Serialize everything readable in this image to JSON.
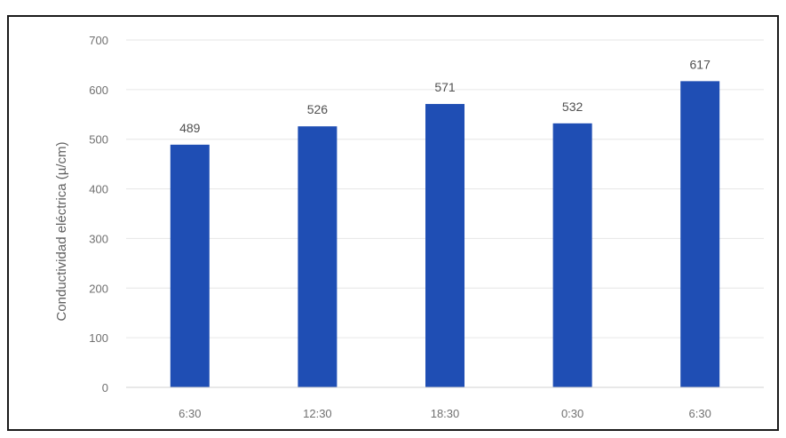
{
  "chart_data": {
    "type": "bar",
    "categories": [
      "6:30",
      "12:30",
      "18:30",
      "0:30",
      "6:30"
    ],
    "values": [
      489,
      526,
      571,
      532,
      617
    ],
    "data_labels": [
      "489",
      "526",
      "571",
      "532",
      "617"
    ],
    "title": "",
    "xlabel": "",
    "ylabel": "Conductividad eléctrica (µ/cm)",
    "ylim": [
      0,
      700
    ],
    "yticks": [
      0,
      100,
      200,
      300,
      400,
      500,
      600,
      700
    ],
    "grid": true,
    "legend": "none",
    "bar_color": "#1f4eb4",
    "grid_color": "#e6e6e6"
  }
}
